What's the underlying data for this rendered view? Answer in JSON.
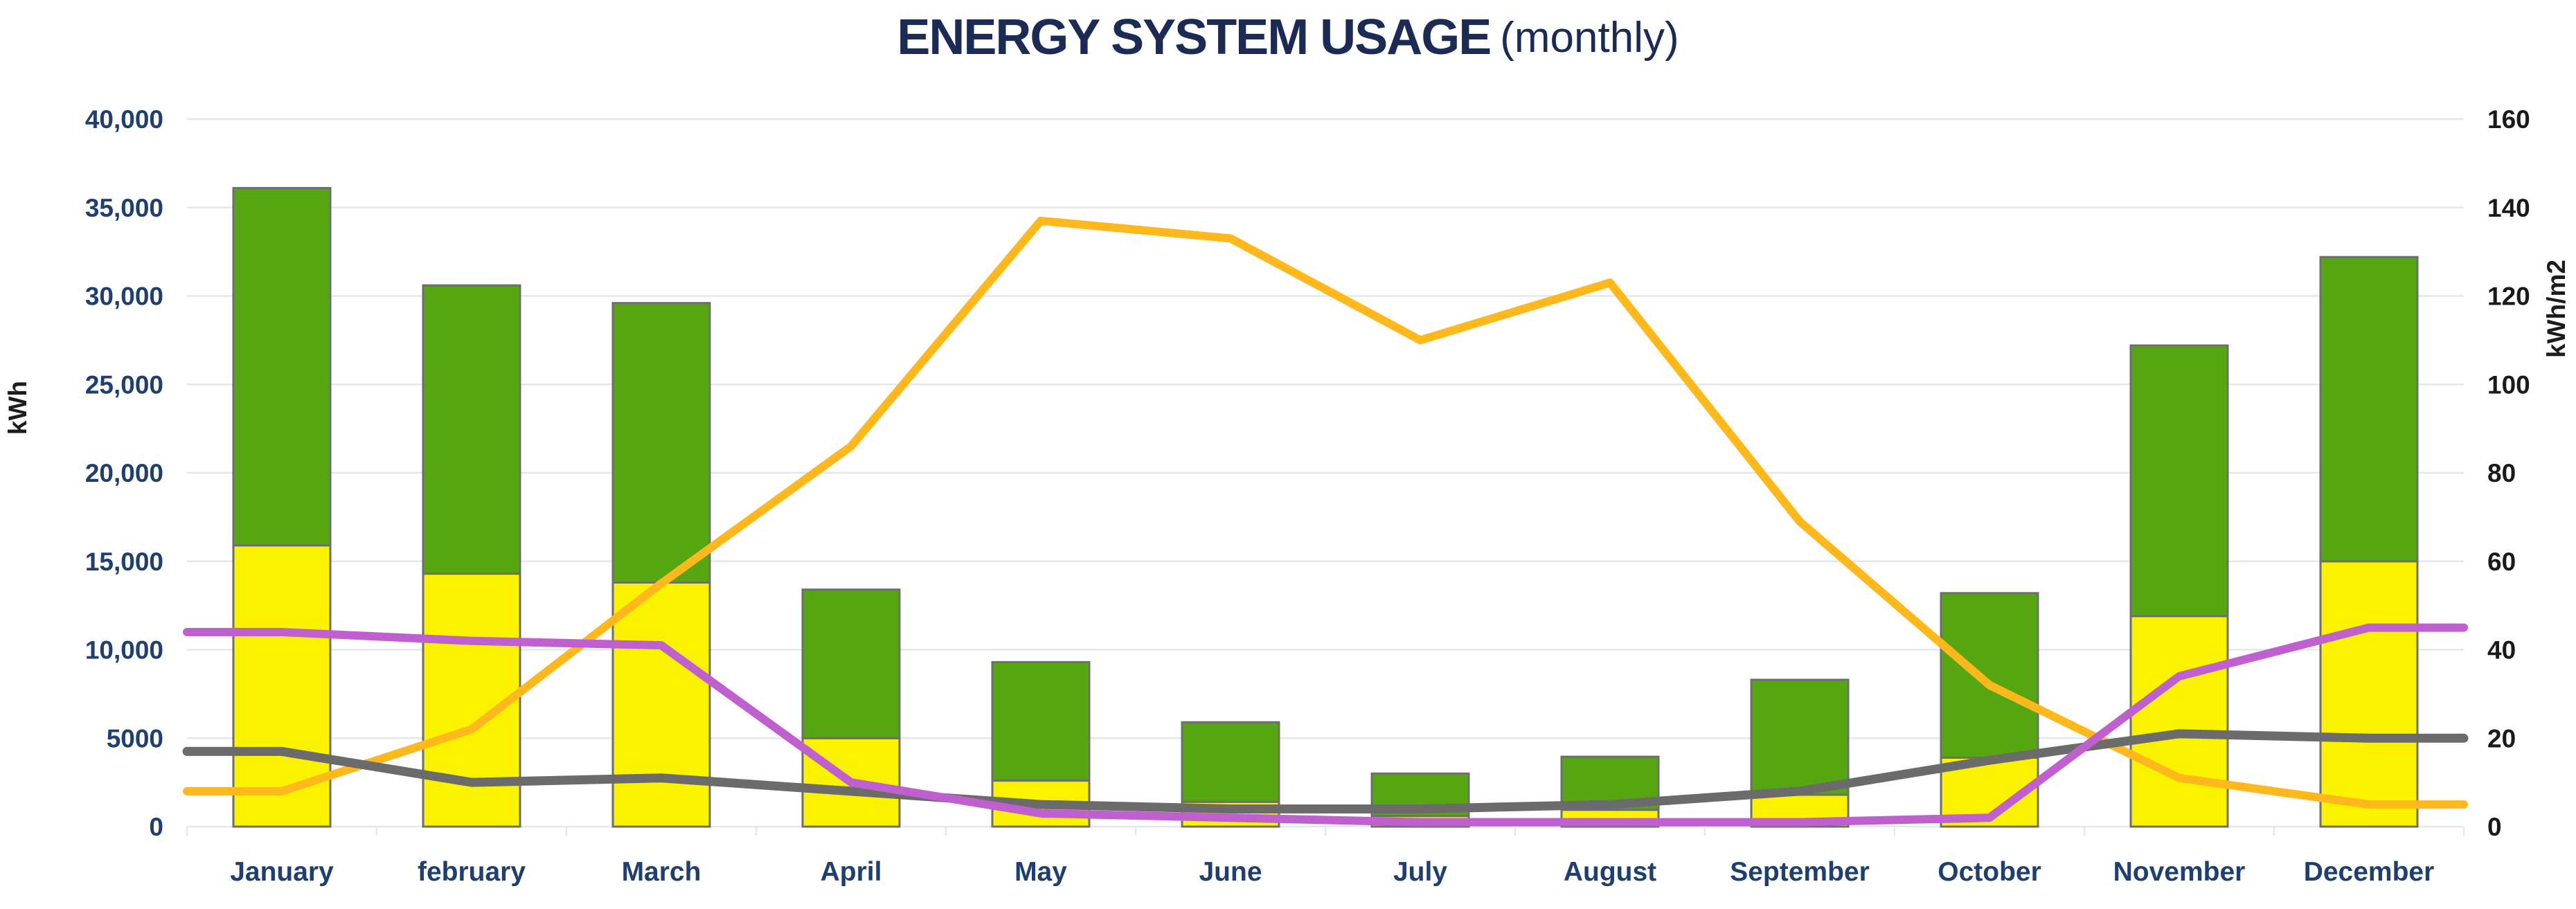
{
  "title": {
    "main": "ENERGY SYSTEM USAGE",
    "suffix": "(monthly)"
  },
  "left_axis": {
    "label": "kWh",
    "tick_labels": [
      "40,000",
      "35,000",
      "30,000",
      "25,000",
      "20,000",
      "15,000",
      "10,000",
      "5000",
      "0"
    ],
    "tick_values": [
      40000,
      35000,
      30000,
      25000,
      20000,
      15000,
      10000,
      5000,
      0
    ]
  },
  "right_axis": {
    "label": "kWh/m2",
    "tick_labels": [
      "160",
      "140",
      "120",
      "100",
      "80",
      "60",
      "40",
      "20",
      "0"
    ],
    "tick_values": [
      160,
      140,
      120,
      100,
      80,
      60,
      40,
      20,
      0
    ]
  },
  "colors": {
    "title": "#1B2B55",
    "axis_text_left": "#1E3F6F",
    "axis_text_right": "#1A1A1A",
    "month_text": "#1E3F6F",
    "gridline": "#E2E8EF",
    "bar_outline": "#6E6E6E",
    "yellow_bar": "#FBF200",
    "green_bar": "#56A611",
    "orange_line": "#FFB81C",
    "purple_line": "#C05FD0",
    "gray_line": "#6B6B6B",
    "background": "#FFFFFF"
  },
  "chart_data": {
    "type": "bar",
    "subtype": "stacked-bars-with-lines",
    "title": "ENERGY SYSTEM USAGE (monthly)",
    "xlabel": "",
    "ylabel_left": "kWh",
    "ylabel_right": "kWh/m2",
    "left_ylim": [
      0,
      40000
    ],
    "right_ylim": [
      0,
      160
    ],
    "grid": true,
    "legend": false,
    "categories": [
      "January",
      "february",
      "March",
      "April",
      "May",
      "June",
      "July",
      "August",
      "September",
      "October",
      "November",
      "December"
    ],
    "series": [
      {
        "name": "yellow-stack-segment",
        "type": "bar",
        "axis": "left",
        "color_key": "yellow_bar",
        "values": [
          15900,
          14300,
          13800,
          5000,
          2600,
          1400,
          600,
          950,
          1800,
          3900,
          11900,
          15000
        ]
      },
      {
        "name": "green-stack-segment",
        "type": "bar",
        "axis": "left",
        "color_key": "green_bar",
        "values": [
          20200,
          16300,
          15800,
          8400,
          6700,
          4500,
          2400,
          3000,
          6500,
          9300,
          15300,
          17200
        ]
      },
      {
        "name": "orange-line",
        "type": "line",
        "axis": "right",
        "color_key": "orange_line",
        "values": [
          8,
          22,
          55,
          86,
          137,
          133,
          110,
          123,
          69,
          32,
          11,
          5
        ]
      },
      {
        "name": "gray-line",
        "type": "line",
        "axis": "right",
        "color_key": "gray_line",
        "values": [
          17,
          10,
          11,
          8,
          5,
          4,
          4,
          5,
          8,
          15,
          21,
          20
        ]
      },
      {
        "name": "purple-line",
        "type": "line",
        "axis": "right",
        "color_key": "purple_line",
        "values": [
          44,
          42,
          41,
          10,
          3,
          2,
          1,
          1,
          1,
          2,
          34,
          45
        ]
      }
    ],
    "bar_totals": [
      36100,
      30600,
      29600,
      13400,
      9300,
      5900,
      3000,
      3950,
      8300,
      13200,
      27200,
      32200
    ]
  }
}
